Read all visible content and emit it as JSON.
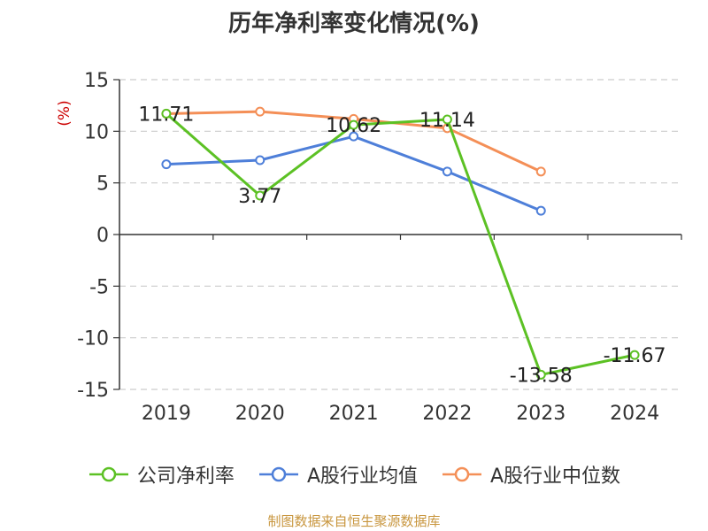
{
  "title": "历年净利率变化情况(%)",
  "source": "制图数据来自恒生聚源数据库",
  "chart_data": {
    "type": "line",
    "title": "历年净利率变化情况(%)",
    "ylabel": "(%)",
    "xlabel": "",
    "categories": [
      "2019",
      "2020",
      "2021",
      "2022",
      "2023",
      "2024"
    ],
    "ylim": [
      -15,
      15
    ],
    "yticks": [
      15,
      10,
      5,
      0,
      -5,
      -10,
      -15
    ],
    "grid": true,
    "legend_position": "bottom",
    "series": [
      {
        "name": "公司净利率",
        "color": "#5cc124",
        "values": [
          11.71,
          3.77,
          10.62,
          11.14,
          -13.58,
          -11.67
        ],
        "labels": [
          "11.71",
          "3.77",
          "10.62",
          "11.14",
          "-13.58",
          "-11.67"
        ]
      },
      {
        "name": "A股行业均值",
        "color": "#4e7fd9",
        "values": [
          6.8,
          7.2,
          9.5,
          6.1,
          2.3,
          null
        ]
      },
      {
        "name": "A股行业中位数",
        "color": "#f48f57",
        "values": [
          11.7,
          11.9,
          11.2,
          10.3,
          6.1,
          null
        ]
      }
    ]
  }
}
